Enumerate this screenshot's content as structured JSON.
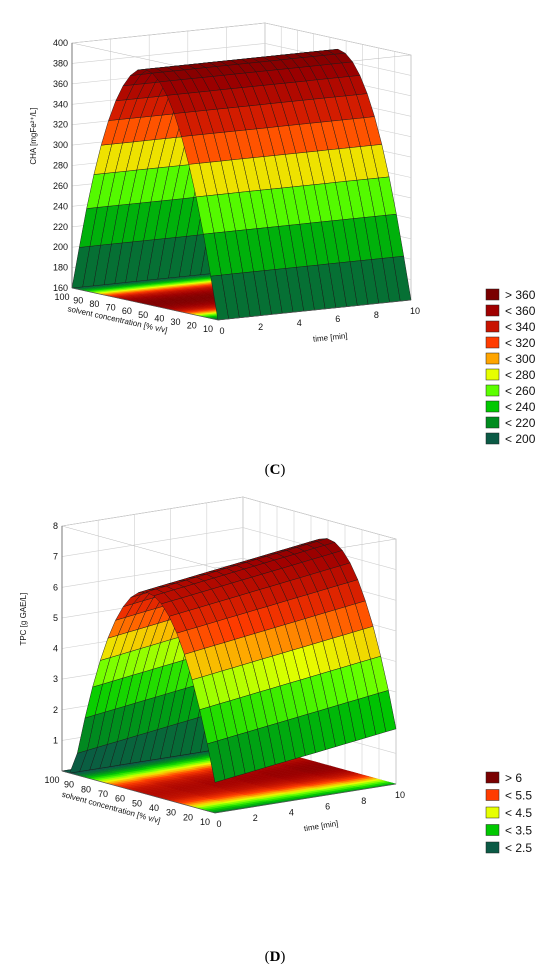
{
  "colors": {
    "top": "#7a0000",
    "red": "#c30000",
    "orange": "#ffa500",
    "yellow": "#e6ff00",
    "lime": "#5cff00",
    "green": "#00b400",
    "darkgreen": "#006e28",
    "teal": "#0b5a45",
    "cap": "#bdbdbd"
  },
  "panels": [
    {
      "id": "C",
      "caption": {
        "open": "(",
        "letter": "C",
        "close": ")"
      },
      "chart_data": {
        "type": "surface3d",
        "zlabel": "CHA [mgFe²⁺/L]",
        "xlabel": "time [min]",
        "ylabel": "solvent concentration [% v/v]",
        "x_ticks": [
          "0",
          "2",
          "4",
          "6",
          "8",
          "10"
        ],
        "y_ticks": [
          "10",
          "20",
          "30",
          "40",
          "50",
          "60",
          "70",
          "80",
          "90",
          "100"
        ],
        "z_ticks": [
          "160",
          "180",
          "200",
          "220",
          "240",
          "260",
          "280",
          "300",
          "320",
          "340",
          "360",
          "380",
          "400"
        ],
        "zlim": [
          160,
          400
        ],
        "model": {
          "peak_solvent": 55,
          "max_value": 390,
          "curvature": 0.115,
          "time_slope": 0
        },
        "legend": [
          {
            "label": "> 360",
            "color": "#7a0000"
          },
          {
            "label": "< 360",
            "color": "#a00000"
          },
          {
            "label": "< 340",
            "color": "#c81400"
          },
          {
            "label": "< 320",
            "color": "#ff3c00"
          },
          {
            "label": "< 300",
            "color": "#ffa500"
          },
          {
            "label": "< 280",
            "color": "#e6ff00"
          },
          {
            "label": "< 260",
            "color": "#5cff00"
          },
          {
            "label": "< 240",
            "color": "#00c800"
          },
          {
            "label": "< 220",
            "color": "#008c1e"
          },
          {
            "label": "< 200",
            "color": "#0b5a45"
          }
        ]
      }
    },
    {
      "id": "D",
      "caption": {
        "open": "(",
        "letter": "D",
        "close": ")"
      },
      "chart_data": {
        "type": "surface3d",
        "zlabel": "TPC [g GAE/L]",
        "xlabel": "time [min]",
        "ylabel": "solvent concentration [% v/v]",
        "x_ticks": [
          "0",
          "2",
          "4",
          "6",
          "8",
          "10"
        ],
        "y_ticks": [
          "10",
          "20",
          "30",
          "40",
          "50",
          "60",
          "70",
          "80",
          "90",
          "100"
        ],
        "z_ticks": [
          "1",
          "2",
          "3",
          "4",
          "5",
          "6",
          "7",
          "8"
        ],
        "zlim": [
          0,
          8
        ],
        "model": {
          "peak_solvent": 50,
          "max_value": 7.0,
          "curvature": 0.0035,
          "time_slope": 0.08
        },
        "legend": [
          {
            "label": "> 6",
            "color": "#7a0000"
          },
          {
            "label": "< 5.5",
            "color": "#ff3c00"
          },
          {
            "label": "< 4.5",
            "color": "#e6ff00"
          },
          {
            "label": "< 3.5",
            "color": "#00c800"
          },
          {
            "label": "< 2.5",
            "color": "#0b5a45"
          }
        ]
      }
    }
  ]
}
